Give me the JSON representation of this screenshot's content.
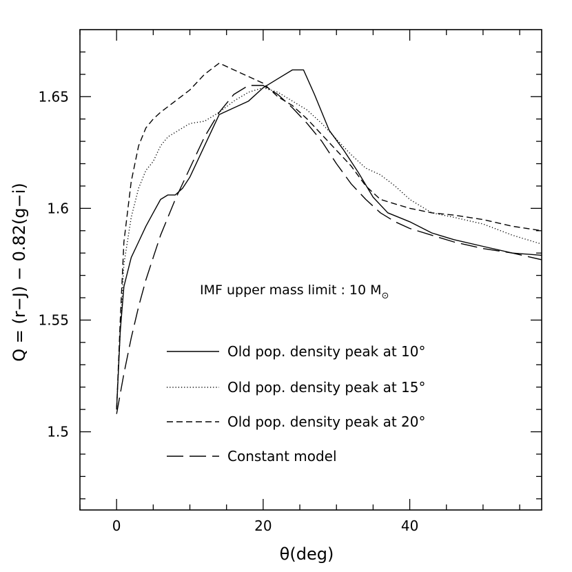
{
  "chart_data": {
    "type": "line",
    "xlabel": "θ(deg)",
    "ylabel": "Q = (r−J) − 0.82(g−i)",
    "xlim": [
      -5,
      58
    ],
    "ylim": [
      1.465,
      1.68
    ],
    "x_ticks": [
      0,
      20,
      40
    ],
    "x_tick_labels": [
      "0",
      "20",
      "40"
    ],
    "y_ticks": [
      1.5,
      1.55,
      1.6,
      1.65
    ],
    "y_tick_labels": [
      "1.5",
      "1.55",
      "1.6",
      "1.65"
    ],
    "annotation": {
      "prefix": "IMF upper mass limit : 10 M",
      "subscript": "⊙"
    },
    "series": [
      {
        "name": "Old pop. density peak at 10°",
        "dash": "solid",
        "x": [
          0,
          0.5,
          1,
          2,
          3,
          4,
          5,
          6,
          7,
          8,
          9,
          10,
          12,
          14,
          16,
          18,
          20,
          22,
          24,
          25.5,
          27,
          29,
          31,
          33,
          35,
          37,
          40,
          43,
          46,
          50,
          54,
          58
        ],
        "y": [
          1.51,
          1.545,
          1.565,
          1.578,
          1.585,
          1.592,
          1.598,
          1.604,
          1.606,
          1.606,
          1.609,
          1.614,
          1.628,
          1.642,
          1.645,
          1.648,
          1.654,
          1.658,
          1.662,
          1.662,
          1.651,
          1.635,
          1.626,
          1.616,
          1.605,
          1.598,
          1.594,
          1.589,
          1.586,
          1.583,
          1.58,
          1.579
        ]
      },
      {
        "name": "Old pop. density peak at 15°",
        "dash": "dotted",
        "x": [
          0,
          0.5,
          1,
          2,
          3,
          4,
          5,
          6,
          7,
          8,
          9,
          10,
          12,
          14,
          16,
          18,
          20,
          22,
          24,
          26,
          28,
          30,
          32,
          34,
          36,
          38,
          40,
          43,
          46,
          50,
          54,
          58
        ],
        "y": [
          1.51,
          1.545,
          1.575,
          1.596,
          1.609,
          1.617,
          1.621,
          1.628,
          1.632,
          1.634,
          1.636,
          1.638,
          1.639,
          1.643,
          1.648,
          1.652,
          1.654,
          1.652,
          1.648,
          1.644,
          1.638,
          1.631,
          1.624,
          1.618,
          1.615,
          1.61,
          1.604,
          1.598,
          1.596,
          1.593,
          1.588,
          1.584
        ]
      },
      {
        "name": "Old pop. density peak at 20°",
        "dash": "dashed",
        "x": [
          0,
          0.5,
          1,
          2,
          3,
          4,
          5,
          6,
          8,
          10,
          12,
          14,
          16,
          18,
          20,
          22,
          24,
          26,
          28,
          30,
          32,
          34,
          36,
          38,
          40,
          43,
          46,
          50,
          54,
          58
        ],
        "y": [
          1.51,
          1.55,
          1.585,
          1.612,
          1.628,
          1.636,
          1.64,
          1.643,
          1.648,
          1.653,
          1.66,
          1.665,
          1.662,
          1.659,
          1.656,
          1.65,
          1.646,
          1.64,
          1.633,
          1.626,
          1.619,
          1.61,
          1.604,
          1.602,
          1.6,
          1.598,
          1.597,
          1.595,
          1.592,
          1.59
        ]
      },
      {
        "name": "Constant model",
        "dash": "longdash",
        "x": [
          0,
          1,
          2,
          3,
          4,
          5,
          6,
          8,
          10,
          12,
          14,
          16,
          18,
          20,
          22,
          24,
          26,
          28,
          30,
          32,
          34,
          36,
          38,
          40,
          43,
          46,
          50,
          54,
          58
        ],
        "y": [
          1.508,
          1.526,
          1.542,
          1.556,
          1.568,
          1.578,
          1.588,
          1.604,
          1.618,
          1.632,
          1.643,
          1.651,
          1.655,
          1.655,
          1.651,
          1.645,
          1.638,
          1.63,
          1.62,
          1.611,
          1.604,
          1.598,
          1.594,
          1.591,
          1.588,
          1.585,
          1.582,
          1.58,
          1.577
        ]
      }
    ]
  }
}
